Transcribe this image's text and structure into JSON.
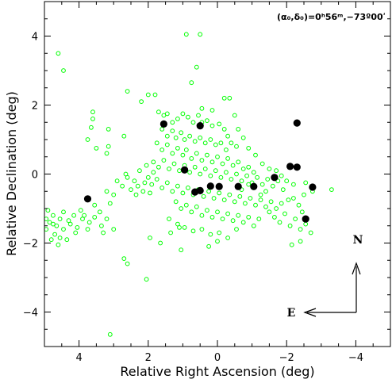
{
  "chart_data": {
    "type": "scatter",
    "title": "",
    "xlabel": "Relative Right Ascension (deg)",
    "ylabel": "Relative Declination (deg)",
    "xlim": [
      5,
      -5
    ],
    "ylim": [
      -5,
      5
    ],
    "xticks": [
      {
        "value": 4,
        "label": "4"
      },
      {
        "value": 2,
        "label": "2"
      },
      {
        "value": 0,
        "label": "0"
      },
      {
        "value": -2,
        "label": "−2"
      },
      {
        "value": -4,
        "label": "−4"
      }
    ],
    "yticks": [
      {
        "value": 4,
        "label": "4"
      },
      {
        "value": 2,
        "label": "2"
      },
      {
        "value": 0,
        "label": "0"
      },
      {
        "value": -2,
        "label": "−2"
      },
      {
        "value": -4,
        "label": "−4"
      }
    ],
    "annotation": "(α₀,δ₀)=0ʰ56ᵐ,−73º00ʹ",
    "compass": {
      "north": "N",
      "east": "E"
    },
    "series": [
      {
        "marker": "open-circle",
        "color": "#00ff00",
        "points": [
          [
            4.6,
            3.5
          ],
          [
            4.45,
            3.0
          ],
          [
            0.9,
            4.05
          ],
          [
            0.5,
            4.05
          ],
          [
            0.6,
            3.1
          ],
          [
            2.6,
            2.4
          ],
          [
            2.2,
            2.1
          ],
          [
            2.0,
            2.3
          ],
          [
            1.8,
            2.3
          ],
          [
            0.75,
            2.65
          ],
          [
            3.6,
            1.8
          ],
          [
            3.6,
            1.6
          ],
          [
            3.65,
            1.35
          ],
          [
            3.75,
            1.0
          ],
          [
            3.15,
            1.3
          ],
          [
            2.7,
            1.1
          ],
          [
            3.15,
            0.8
          ],
          [
            3.2,
            0.6
          ],
          [
            3.5,
            0.75
          ],
          [
            1.7,
            1.8
          ],
          [
            1.55,
            1.7
          ],
          [
            1.45,
            1.75
          ],
          [
            1.3,
            1.5
          ],
          [
            1.15,
            1.6
          ],
          [
            1.0,
            1.75
          ],
          [
            0.85,
            1.65
          ],
          [
            0.7,
            1.5
          ],
          [
            0.55,
            1.7
          ],
          [
            0.45,
            1.5
          ],
          [
            0.3,
            1.55
          ],
          [
            0.15,
            1.4
          ],
          [
            -0.05,
            1.45
          ],
          [
            -0.2,
            1.3
          ],
          [
            -0.3,
            1.1
          ],
          [
            -0.4,
            0.9
          ],
          [
            -0.55,
            0.8
          ],
          [
            1.6,
            1.3
          ],
          [
            1.45,
            1.1
          ],
          [
            1.3,
            1.25
          ],
          [
            1.2,
            1.05
          ],
          [
            1.05,
            1.2
          ],
          [
            0.95,
            1.0
          ],
          [
            0.8,
            1.1
          ],
          [
            0.65,
            0.95
          ],
          [
            0.5,
            1.05
          ],
          [
            0.35,
            0.9
          ],
          [
            0.2,
            1.0
          ],
          [
            0.05,
            0.85
          ],
          [
            -0.1,
            0.9
          ],
          [
            -0.25,
            0.7
          ],
          [
            1.75,
            0.9
          ],
          [
            1.6,
            0.7
          ],
          [
            1.45,
            0.85
          ],
          [
            1.3,
            0.6
          ],
          [
            1.15,
            0.75
          ],
          [
            1.0,
            0.55
          ],
          [
            0.9,
            0.7
          ],
          [
            0.75,
            0.45
          ],
          [
            0.6,
            0.6
          ],
          [
            0.45,
            0.4
          ],
          [
            0.3,
            0.55
          ],
          [
            0.15,
            0.35
          ],
          [
            0.0,
            0.5
          ],
          [
            -0.15,
            0.3
          ],
          [
            -0.3,
            0.45
          ],
          [
            -0.45,
            0.25
          ],
          [
            -0.6,
            0.35
          ],
          [
            -0.75,
            0.15
          ],
          [
            -0.9,
            0.2
          ],
          [
            -1.05,
            0.05
          ],
          [
            1.85,
            0.35
          ],
          [
            1.7,
            0.2
          ],
          [
            1.55,
            0.4
          ],
          [
            1.4,
            0.15
          ],
          [
            1.25,
            0.3
          ],
          [
            1.1,
            0.1
          ],
          [
            0.95,
            0.25
          ],
          [
            0.8,
            0.05
          ],
          [
            0.65,
            0.2
          ],
          [
            0.5,
            0.0
          ],
          [
            0.35,
            0.15
          ],
          [
            0.2,
            -0.05
          ],
          [
            0.05,
            0.1
          ],
          [
            -0.1,
            -0.1
          ],
          [
            -0.25,
            0.05
          ],
          [
            -0.4,
            -0.15
          ],
          [
            -0.55,
            0.0
          ],
          [
            -0.7,
            -0.2
          ],
          [
            -0.85,
            -0.05
          ],
          [
            -1.0,
            -0.25
          ],
          [
            -1.15,
            -0.1
          ],
          [
            -1.3,
            -0.3
          ],
          [
            -1.45,
            -0.15
          ],
          [
            -1.6,
            -0.35
          ],
          [
            -1.75,
            -0.2
          ],
          [
            -1.9,
            -0.45
          ],
          [
            2.0,
            -0.1
          ],
          [
            1.9,
            -0.3
          ],
          [
            1.75,
            -0.15
          ],
          [
            1.6,
            -0.4
          ],
          [
            1.45,
            -0.25
          ],
          [
            1.3,
            -0.5
          ],
          [
            1.15,
            -0.35
          ],
          [
            1.0,
            -0.55
          ],
          [
            0.85,
            -0.4
          ],
          [
            0.7,
            -0.6
          ],
          [
            0.55,
            -0.45
          ],
          [
            0.4,
            -0.65
          ],
          [
            0.25,
            -0.5
          ],
          [
            0.1,
            -0.7
          ],
          [
            -0.05,
            -0.55
          ],
          [
            -0.2,
            -0.75
          ],
          [
            -0.35,
            -0.6
          ],
          [
            -0.5,
            -0.8
          ],
          [
            -0.65,
            -0.65
          ],
          [
            -0.8,
            -0.85
          ],
          [
            -0.95,
            -0.7
          ],
          [
            -1.1,
            -0.9
          ],
          [
            -1.25,
            -0.75
          ],
          [
            -1.4,
            -0.95
          ],
          [
            -1.55,
            -0.8
          ],
          [
            -1.7,
            -1.0
          ],
          [
            -1.85,
            -0.85
          ],
          [
            1.2,
            -0.8
          ],
          [
            1.05,
            -1.0
          ],
          [
            0.9,
            -0.9
          ],
          [
            0.75,
            -1.1
          ],
          [
            0.6,
            -0.95
          ],
          [
            0.45,
            -1.2
          ],
          [
            0.3,
            -1.05
          ],
          [
            0.15,
            -1.25
          ],
          [
            0.0,
            -1.1
          ],
          [
            -0.15,
            -1.3
          ],
          [
            -0.3,
            -1.15
          ],
          [
            -0.45,
            -1.35
          ],
          [
            -0.6,
            -1.2
          ],
          [
            -0.75,
            -1.4
          ],
          [
            -0.9,
            -1.25
          ],
          [
            -1.05,
            -1.5
          ],
          [
            -1.2,
            -1.3
          ],
          [
            0.95,
            -1.55
          ],
          [
            0.7,
            -1.65
          ],
          [
            0.45,
            -1.6
          ],
          [
            0.2,
            -1.75
          ],
          [
            -0.05,
            -1.7
          ],
          [
            -0.3,
            -1.85
          ],
          [
            -0.55,
            -1.6
          ],
          [
            1.4,
            -1.3
          ],
          [
            1.15,
            -1.45
          ],
          [
            1.35,
            -1.7
          ],
          [
            1.1,
            -1.55
          ],
          [
            2.4,
            -0.2
          ],
          [
            2.3,
            -0.35
          ],
          [
            2.15,
            -0.5
          ],
          [
            2.35,
            -0.6
          ],
          [
            2.1,
            -0.25
          ],
          [
            1.95,
            -0.55
          ],
          [
            2.25,
            0.1
          ],
          [
            2.05,
            0.25
          ],
          [
            1.85,
            0.05
          ],
          [
            2.6,
            -0.1
          ],
          [
            2.75,
            -0.35
          ],
          [
            2.5,
            -0.45
          ],
          [
            2.65,
            0.0
          ],
          [
            2.9,
            -0.2
          ],
          [
            3.0,
            -0.6
          ],
          [
            3.2,
            -0.5
          ],
          [
            3.1,
            -0.85
          ],
          [
            3.2,
            -1.3
          ],
          [
            3.35,
            -1.5
          ],
          [
            3.55,
            -1.25
          ],
          [
            3.7,
            -1.4
          ],
          [
            3.75,
            -1.6
          ],
          [
            3.9,
            -1.3
          ],
          [
            4.05,
            -1.55
          ],
          [
            4.15,
            -1.2
          ],
          [
            4.3,
            -1.35
          ],
          [
            4.45,
            -1.1
          ],
          [
            4.55,
            -1.3
          ],
          [
            4.65,
            -1.5
          ],
          [
            4.75,
            -1.2
          ],
          [
            4.85,
            -1.4
          ],
          [
            4.95,
            -1.6
          ],
          [
            4.9,
            -1.05
          ],
          [
            4.7,
            -1.75
          ],
          [
            4.55,
            -1.85
          ],
          [
            4.45,
            -1.6
          ],
          [
            4.35,
            -1.9
          ],
          [
            4.25,
            -1.45
          ],
          [
            4.1,
            -1.7
          ],
          [
            3.95,
            -1.05
          ],
          [
            3.85,
            -1.2
          ],
          [
            3.55,
            -0.9
          ],
          [
            3.4,
            -1.1
          ],
          [
            4.8,
            -1.9
          ],
          [
            4.6,
            -2.05
          ],
          [
            4.95,
            -1.3
          ],
          [
            4.75,
            -1.45
          ],
          [
            3.3,
            -1.7
          ],
          [
            3.0,
            -1.6
          ],
          [
            -1.5,
            -1.1
          ],
          [
            -1.65,
            -1.25
          ],
          [
            -1.8,
            -1.4
          ],
          [
            -1.95,
            -1.15
          ],
          [
            -2.1,
            -1.5
          ],
          [
            -2.25,
            -1.3
          ],
          [
            -2.4,
            -1.6
          ],
          [
            -2.55,
            -1.45
          ],
          [
            -2.7,
            -1.7
          ],
          [
            -2.2,
            -0.7
          ],
          [
            -2.35,
            -0.9
          ],
          [
            -2.5,
            -0.6
          ],
          [
            -2.05,
            -0.75
          ],
          [
            -2.15,
            -2.05
          ],
          [
            -2.4,
            -1.95
          ],
          [
            -2.45,
            -1.1
          ],
          [
            -3.3,
            -0.45
          ],
          [
            0.0,
            -1.95
          ],
          [
            0.25,
            -2.1
          ],
          [
            1.95,
            -1.85
          ],
          [
            1.65,
            -2.0
          ],
          [
            1.05,
            -2.2
          ],
          [
            2.7,
            -2.45
          ],
          [
            2.6,
            -2.6
          ],
          [
            2.05,
            -3.05
          ],
          [
            3.1,
            -4.65
          ],
          [
            -0.35,
            2.2
          ],
          [
            -0.2,
            2.2
          ],
          [
            0.45,
            1.9
          ],
          [
            0.15,
            1.85
          ],
          [
            -0.5,
            1.7
          ],
          [
            -0.6,
            1.3
          ],
          [
            -0.75,
            1.05
          ],
          [
            -0.9,
            0.75
          ],
          [
            -1.1,
            0.55
          ],
          [
            -1.3,
            0.3
          ],
          [
            -1.5,
            0.15
          ],
          [
            -1.7,
            0.1
          ],
          [
            -1.85,
            -0.05
          ],
          [
            -2.0,
            -0.2
          ],
          [
            -2.2,
            -0.3
          ],
          [
            -2.55,
            -0.25
          ],
          [
            -2.75,
            -0.5
          ],
          [
            -1.4,
            -0.5
          ],
          [
            -1.25,
            -0.6
          ],
          [
            -1.05,
            -0.4
          ],
          [
            -0.9,
            -0.3
          ],
          [
            -0.7,
            -0.45
          ]
        ]
      },
      {
        "marker": "filled-circle",
        "color": "#000000",
        "points": [
          [
            1.55,
            1.45
          ],
          [
            0.5,
            1.4
          ],
          [
            0.95,
            0.12
          ],
          [
            0.2,
            -0.35
          ],
          [
            0.65,
            -0.52
          ],
          [
            0.5,
            -0.48
          ],
          [
            -0.05,
            -0.36
          ],
          [
            -0.6,
            -0.36
          ],
          [
            -1.05,
            -0.36
          ],
          [
            -1.65,
            -0.1
          ],
          [
            -2.1,
            0.22
          ],
          [
            -2.3,
            0.2
          ],
          [
            -2.3,
            1.48
          ],
          [
            -2.75,
            -0.38
          ],
          [
            -2.55,
            -1.3
          ],
          [
            3.75,
            -0.72
          ]
        ]
      }
    ]
  }
}
